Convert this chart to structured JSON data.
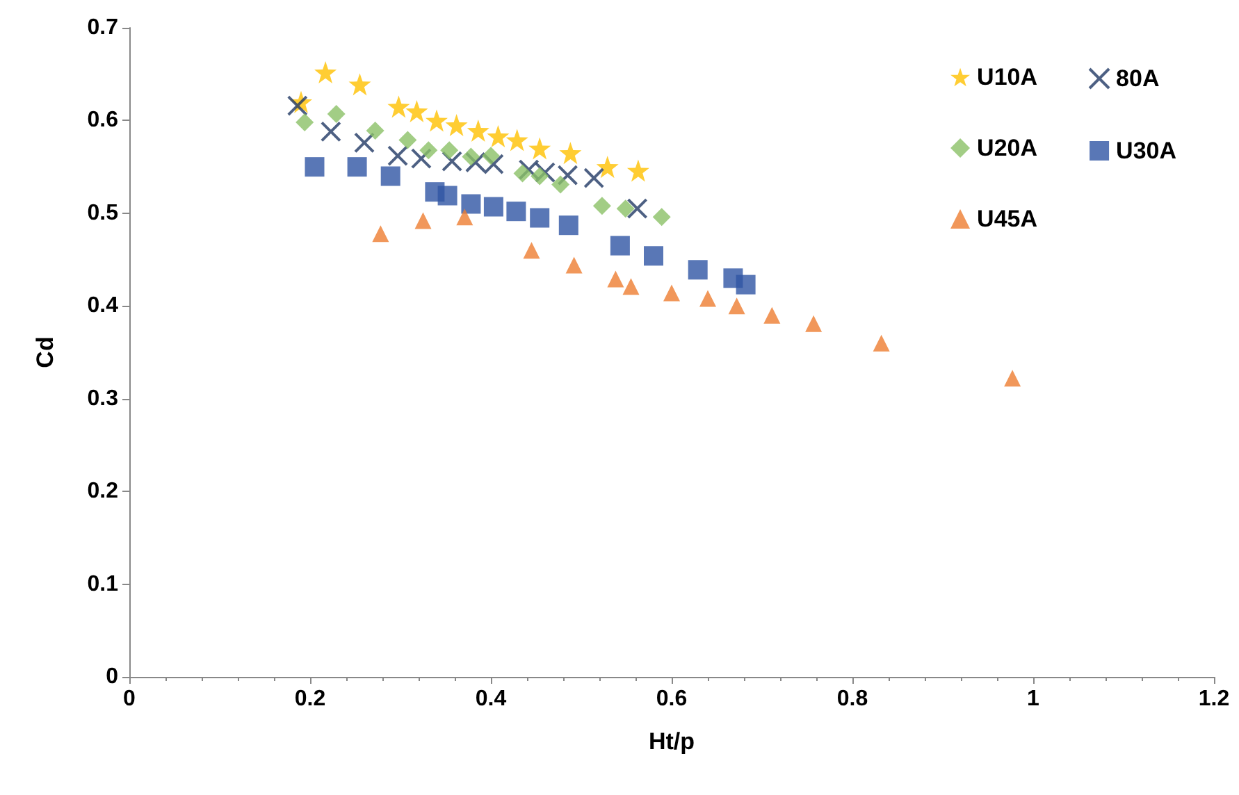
{
  "chart_data": {
    "type": "scatter",
    "xlabel": "Ht/p",
    "ylabel": "Cd",
    "xlim": [
      0,
      1.2
    ],
    "xticks": [
      0,
      0.2,
      0.4,
      0.6,
      0.8,
      1,
      1.2
    ],
    "ylim": [
      0,
      0.7
    ],
    "yticks": [
      0,
      0.1,
      0.2,
      0.3,
      0.4,
      0.5,
      0.6,
      0.7
    ],
    "grid": false,
    "legend": "top right",
    "series": [
      {
        "name": "U10A",
        "color": "#ffc000",
        "marker": "star",
        "x": [
          0.19,
          0.217,
          0.255,
          0.298,
          0.318,
          0.34,
          0.362,
          0.386,
          0.408,
          0.429,
          0.454,
          0.488,
          0.529,
          0.563
        ],
        "values": [
          0.62,
          0.652,
          0.639,
          0.615,
          0.61,
          0.6,
          0.595,
          0.589,
          0.583,
          0.579,
          0.57,
          0.565,
          0.55,
          0.546
        ]
      },
      {
        "name": "80A",
        "color": "#203864",
        "marker": "cross",
        "x": [
          0.186,
          0.223,
          0.26,
          0.297,
          0.323,
          0.357,
          0.383,
          0.403,
          0.442,
          0.46,
          0.485,
          0.514,
          0.562
        ],
        "values": [
          0.616,
          0.588,
          0.576,
          0.562,
          0.559,
          0.556,
          0.555,
          0.553,
          0.547,
          0.544,
          0.541,
          0.538,
          0.505
        ]
      },
      {
        "name": "U20A",
        "color": "#8bc066",
        "marker": "diamond",
        "x": [
          0.194,
          0.229,
          0.272,
          0.308,
          0.331,
          0.354,
          0.378,
          0.4,
          0.435,
          0.454,
          0.477,
          0.523,
          0.549,
          0.589
        ],
        "values": [
          0.598,
          0.607,
          0.589,
          0.579,
          0.568,
          0.568,
          0.561,
          0.562,
          0.543,
          0.54,
          0.531,
          0.508,
          0.505,
          0.496
        ]
      },
      {
        "name": "U30A",
        "color": "#2f55a4",
        "marker": "square",
        "x": [
          0.205,
          0.252,
          0.289,
          0.338,
          0.352,
          0.378,
          0.403,
          0.428,
          0.454,
          0.486,
          0.543,
          0.58,
          0.629,
          0.668,
          0.682
        ],
        "values": [
          0.55,
          0.55,
          0.54,
          0.523,
          0.519,
          0.51,
          0.507,
          0.502,
          0.495,
          0.487,
          0.465,
          0.454,
          0.439,
          0.43,
          0.423
        ]
      },
      {
        "name": "U45A",
        "color": "#ed7d31",
        "marker": "triangle",
        "x": [
          0.278,
          0.325,
          0.371,
          0.445,
          0.492,
          0.538,
          0.555,
          0.6,
          0.64,
          0.672,
          0.711,
          0.757,
          0.832,
          0.977
        ],
        "values": [
          0.478,
          0.492,
          0.496,
          0.46,
          0.444,
          0.429,
          0.421,
          0.414,
          0.408,
          0.4,
          0.39,
          0.381,
          0.36,
          0.322
        ]
      }
    ]
  }
}
